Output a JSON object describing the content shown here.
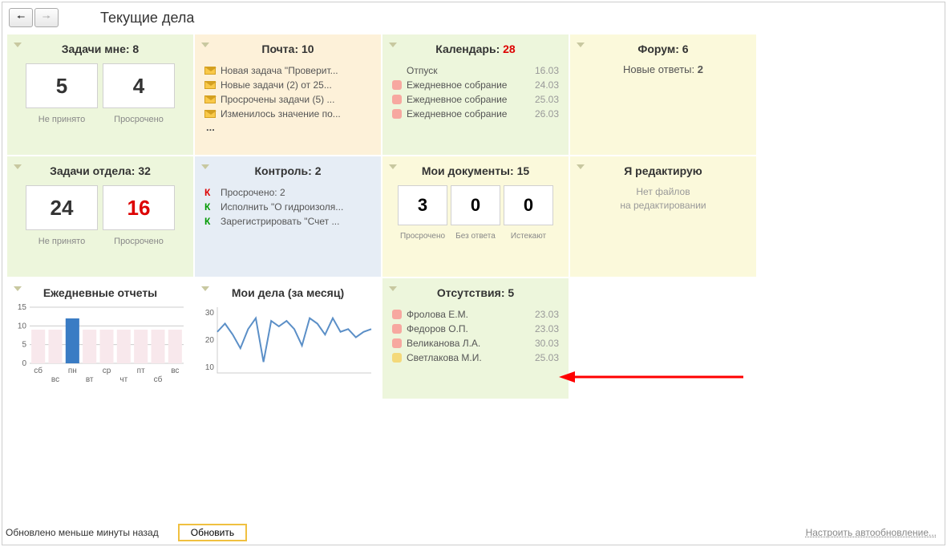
{
  "header": {
    "title": "Текущие дела"
  },
  "colors": {
    "bg_green": "#edf6dc",
    "bg_orange": "#fdf1d9",
    "bg_yellow": "#fbf9db",
    "bg_blue": "#e6edf5",
    "red": "#d00",
    "grey_text": "#888",
    "date_grey": "#999",
    "pink_sq": "#f7a8a0",
    "yellow_sq": "#f4d97a",
    "bar_fill": "#f8e8ec",
    "bar_highlight": "#3a7cc4",
    "line_color": "#5b8fc7",
    "arrow": "#ff0000"
  },
  "widgets": {
    "tasks_me": {
      "title": "Задачи мне:",
      "count": "8",
      "tiles": [
        {
          "value": "5",
          "label": "Не принято"
        },
        {
          "value": "4",
          "label": "Просрочено"
        }
      ]
    },
    "mail": {
      "title": "Почта:",
      "count": "10",
      "items": [
        {
          "text": "Новая задача \"Проверит..."
        },
        {
          "text": "Новые задачи (2) от 25..."
        },
        {
          "text": "Просрочены задачи (5) ..."
        },
        {
          "text": "Изменилось значение по..."
        }
      ],
      "more": "..."
    },
    "calendar": {
      "title": "Календарь:",
      "count": "28",
      "count_red": true,
      "items": [
        {
          "text": "Отпуск",
          "date": "16.03",
          "mark": "none"
        },
        {
          "text": "Ежедневное собрание",
          "date": "24.03",
          "mark": "pink"
        },
        {
          "text": "Ежедневное собрание",
          "date": "25.03",
          "mark": "pink"
        },
        {
          "text": "Ежедневное собрание",
          "date": "26.03",
          "mark": "pink"
        }
      ]
    },
    "forum": {
      "title": "Форум:",
      "count": "6",
      "line": "Новые ответы:",
      "line_value": "2"
    },
    "tasks_dept": {
      "title": "Задачи отдела:",
      "count": "32",
      "tiles": [
        {
          "value": "24",
          "label": "Не принято"
        },
        {
          "value": "16",
          "label": "Просрочено",
          "red": true
        }
      ]
    },
    "control": {
      "title": "Контроль:",
      "count": "2",
      "items": [
        {
          "k": "К",
          "k_color": "red",
          "text": "Просрочено: 2"
        },
        {
          "k": "К",
          "k_color": "green",
          "text": "Исполнить \"О гидроизоля..."
        },
        {
          "k": "К",
          "k_color": "green",
          "text": "Зарегистрировать \"Счет ..."
        }
      ]
    },
    "my_docs": {
      "title": "Мои документы:",
      "count": "15",
      "tiles": [
        {
          "value": "3",
          "label": "Просрочено"
        },
        {
          "value": "0",
          "label": "Без ответа"
        },
        {
          "value": "0",
          "label": "Истекают"
        }
      ]
    },
    "editing": {
      "title": "Я редактирую",
      "msg_l1": "Нет файлов",
      "msg_l2": "на редактировании"
    },
    "daily_reports": {
      "title": "Ежедневные отчеты",
      "chart": {
        "type": "bar",
        "y_ticks": [
          0,
          5,
          10,
          15
        ],
        "ylim": [
          0,
          15
        ],
        "categories": [
          "сб",
          "вс",
          "пн",
          "вт",
          "ср",
          "чт",
          "пт",
          "сб",
          "вс"
        ],
        "values": [
          9,
          9,
          12,
          9,
          9,
          9,
          9,
          9,
          9
        ],
        "highlight_index": 2,
        "bar_color": "#f8e8ec",
        "highlight_color": "#3a7cc4",
        "axis_color": "#cccccc",
        "label_fontsize": 10
      }
    },
    "my_affairs": {
      "title": "Мои дела (за месяц)",
      "chart": {
        "type": "line",
        "y_ticks": [
          10,
          20,
          30
        ],
        "ylim": [
          8,
          32
        ],
        "points": [
          23,
          26,
          22,
          17,
          24,
          28,
          12,
          27,
          25,
          27,
          24,
          18,
          28,
          26,
          22,
          28,
          23,
          24,
          21,
          23,
          24
        ],
        "line_color": "#5b8fc7",
        "axis_color": "#cccccc",
        "line_width": 2
      }
    },
    "absences": {
      "title": "Отсутствия:",
      "count": "5",
      "items": [
        {
          "mark": "pink",
          "text": "Фролова Е.М.",
          "date": "23.03"
        },
        {
          "mark": "pink",
          "text": "Федоров О.П.",
          "date": "23.03"
        },
        {
          "mark": "pink",
          "text": "Великанова Л.А.",
          "date": "30.03"
        },
        {
          "mark": "yellow",
          "text": "Светлакова М.И.",
          "date": "25.03"
        }
      ]
    }
  },
  "footer": {
    "status": "Обновлено меньше минуты назад",
    "refresh": "Обновить",
    "settings": "Настроить автообновление..."
  }
}
